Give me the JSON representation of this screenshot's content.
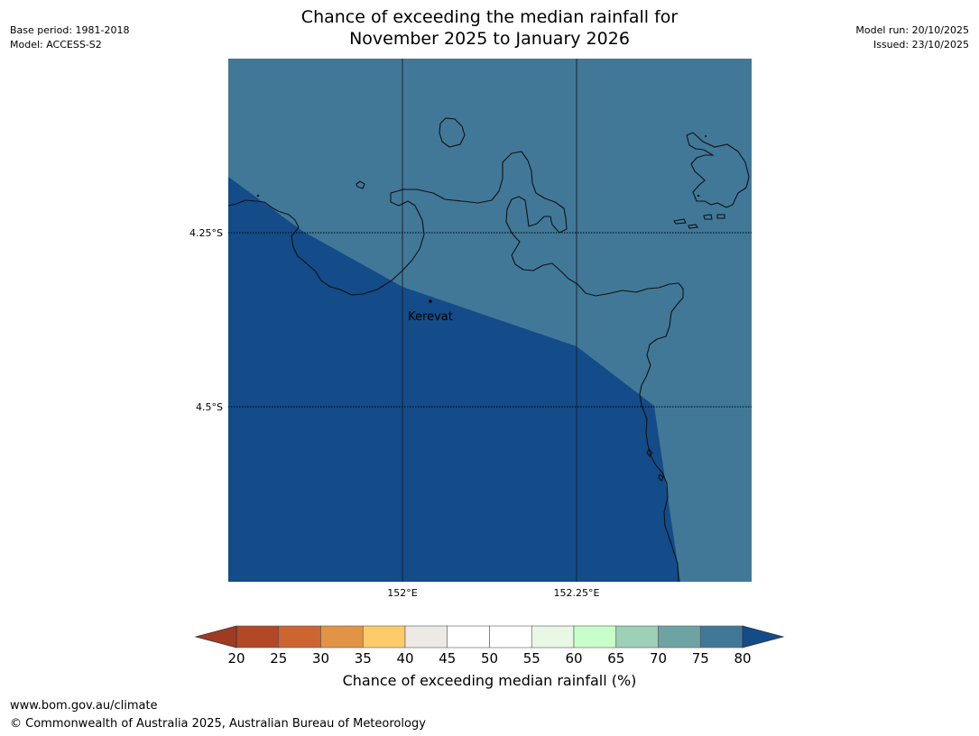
{
  "header": {
    "title_line1": "Chance of exceeding the median rainfall for",
    "title_line2": "November 2025 to January 2026",
    "base_period": "Base period: 1981-2018",
    "model": "Model: ACCESS-S2",
    "model_run": "Model run: 20/10/2025",
    "issued": "Issued: 23/10/2025"
  },
  "map": {
    "lat_labels": [
      "4.25°S",
      "4.5°S"
    ],
    "lon_labels": [
      "152°E",
      "152.25°E"
    ],
    "place_label": "Kerevat",
    "colors": {
      "high_probability": "#134c88",
      "moderate_probability": "#417898",
      "coastline": "#111111"
    }
  },
  "colorbar": {
    "ticks": [
      "20",
      "25",
      "30",
      "35",
      "40",
      "45",
      "50",
      "55",
      "60",
      "65",
      "70",
      "75",
      "80"
    ],
    "bin_colors": [
      "#b24826",
      "#cc6532",
      "#e29446",
      "#fecb6a",
      "#ede9e4",
      "#ffffff",
      "#ffffff",
      "#e9f7e5",
      "#c8fec9",
      "#9ecfb7",
      "#6ea3a3",
      "#417898"
    ],
    "under_color": "#9f3a23",
    "over_color": "#134c88",
    "label": "Chance of exceeding median rainfall (%)"
  },
  "footer": {
    "url": "www.bom.gov.au/climate",
    "copyright": "© Commonwealth of Australia 2025, Australian Bureau of Meteorology"
  }
}
